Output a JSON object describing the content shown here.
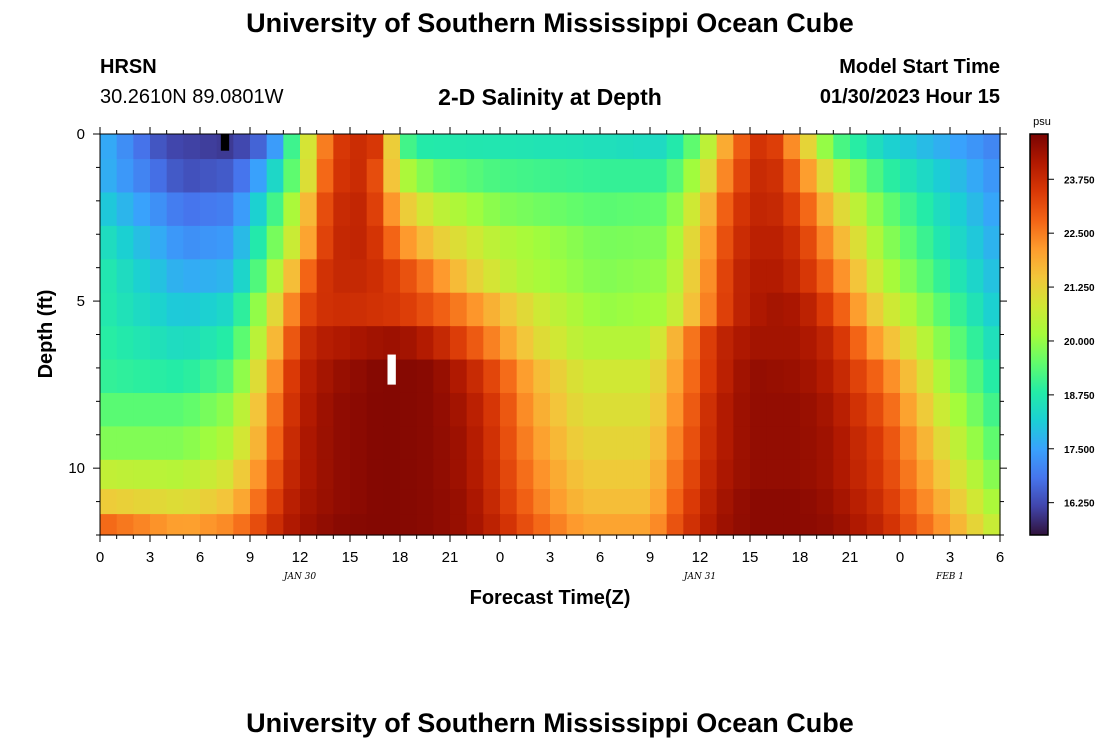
{
  "page": {
    "title_top": "University of Southern Mississippi Ocean Cube",
    "title_bottom": "University of Southern Mississippi Ocean Cube",
    "station_name": "HRSN",
    "station_coords": "30.2610N  89.0801W",
    "plot_subtitle": "2-D Salinity at Depth",
    "model_label": "Model Start Time",
    "model_time": "01/30/2023 Hour 15"
  },
  "chart_data": {
    "type": "heatmap",
    "title": "2-D Salinity at Depth",
    "xlabel": "Forecast Time(Z)",
    "ylabel": "Depth (ft)",
    "x_range_hours": [
      0,
      54
    ],
    "y_range_ft": [
      0,
      12
    ],
    "x_tick_labels": [
      "0",
      "3",
      "6",
      "9",
      "12",
      "15",
      "18",
      "21",
      "0",
      "3",
      "6",
      "9",
      "12",
      "15",
      "18",
      "21",
      "0",
      "3",
      "6"
    ],
    "y_tick_labels": [
      "0",
      "5",
      "10"
    ],
    "day_labels": [
      {
        "text": "JAN 30",
        "hour": 12
      },
      {
        "text": "JAN 31",
        "hour": 36
      },
      {
        "text": "FEB 1",
        "hour": 51
      }
    ],
    "colorbar": {
      "unit": "psu",
      "tick_labels": [
        "23.750",
        "22.500",
        "21.250",
        "20.000",
        "18.750",
        "17.500",
        "16.250"
      ],
      "range": [
        15.5,
        24.8
      ],
      "colors": [
        "#30123b",
        "#4145ab",
        "#4675ed",
        "#39a2fc",
        "#1bcfd4",
        "#24eca6",
        "#61fc6c",
        "#a4fc3b",
        "#d1e834",
        "#f3c63a",
        "#fe9b2d",
        "#f36315",
        "#d93806",
        "#b11901",
        "#7a0402"
      ]
    },
    "depth_rows_ft": [
      0.25,
      1.25,
      2.25,
      3.25,
      4.25,
      5.25,
      6.25,
      7.25,
      8.25,
      9.25,
      10.25,
      11.0,
      11.75
    ],
    "time_hours_step": 1,
    "salinity_profiles": [
      {
        "depth_ft": 0.25,
        "keyframes": [
          [
            0,
            17.8
          ],
          [
            4,
            16.2
          ],
          [
            8,
            16.0
          ],
          [
            10,
            16.8
          ],
          [
            11,
            18.0
          ],
          [
            12,
            20.2
          ],
          [
            13,
            21.6
          ],
          [
            14,
            23.4
          ],
          [
            16,
            23.8
          ],
          [
            17,
            23.2
          ],
          [
            18,
            19.5
          ],
          [
            19,
            18.8
          ],
          [
            22,
            18.7
          ],
          [
            28,
            18.6
          ],
          [
            34,
            18.4
          ],
          [
            36,
            19.8
          ],
          [
            38,
            22.6
          ],
          [
            40,
            23.9
          ],
          [
            42,
            21.8
          ],
          [
            44,
            19.4
          ],
          [
            47,
            18.3
          ],
          [
            51,
            17.6
          ],
          [
            54,
            17.0
          ]
        ]
      },
      {
        "depth_ft": 1.25,
        "keyframes": [
          [
            0,
            17.8
          ],
          [
            5,
            16.3
          ],
          [
            8,
            16.5
          ],
          [
            10,
            17.8
          ],
          [
            12,
            20.0
          ],
          [
            13,
            22.0
          ],
          [
            14,
            23.5
          ],
          [
            16,
            23.8
          ],
          [
            17,
            22.5
          ],
          [
            18,
            20.5
          ],
          [
            20,
            19.6
          ],
          [
            24,
            19.2
          ],
          [
            30,
            19.0
          ],
          [
            34,
            19.0
          ],
          [
            36,
            20.5
          ],
          [
            38,
            23.0
          ],
          [
            40,
            24.0
          ],
          [
            42,
            22.6
          ],
          [
            44,
            20.6
          ],
          [
            47,
            19.0
          ],
          [
            51,
            18.0
          ],
          [
            54,
            17.2
          ]
        ]
      },
      {
        "depth_ft": 2.25,
        "keyframes": [
          [
            0,
            18.2
          ],
          [
            5,
            16.8
          ],
          [
            8,
            17.0
          ],
          [
            10,
            18.6
          ],
          [
            12,
            20.8
          ],
          [
            13,
            22.6
          ],
          [
            14,
            23.7
          ],
          [
            16,
            23.9
          ],
          [
            17,
            22.8
          ],
          [
            18,
            21.6
          ],
          [
            20,
            20.6
          ],
          [
            24,
            19.8
          ],
          [
            30,
            19.4
          ],
          [
            34,
            19.5
          ],
          [
            36,
            21.2
          ],
          [
            38,
            23.4
          ],
          [
            40,
            24.0
          ],
          [
            42,
            23.2
          ],
          [
            44,
            21.4
          ],
          [
            47,
            19.6
          ],
          [
            51,
            18.3
          ],
          [
            54,
            17.4
          ]
        ]
      },
      {
        "depth_ft": 3.25,
        "keyframes": [
          [
            0,
            18.6
          ],
          [
            5,
            17.2
          ],
          [
            8,
            17.4
          ],
          [
            10,
            19.2
          ],
          [
            12,
            21.2
          ],
          [
            13,
            22.8
          ],
          [
            14,
            23.8
          ],
          [
            16,
            23.9
          ],
          [
            17,
            23.2
          ],
          [
            18,
            22.4
          ],
          [
            20,
            21.4
          ],
          [
            24,
            20.4
          ],
          [
            30,
            19.7
          ],
          [
            34,
            19.8
          ],
          [
            36,
            21.6
          ],
          [
            38,
            23.6
          ],
          [
            40,
            24.1
          ],
          [
            42,
            23.6
          ],
          [
            44,
            22.0
          ],
          [
            47,
            20.0
          ],
          [
            51,
            18.5
          ],
          [
            54,
            17.6
          ]
        ]
      },
      {
        "depth_ft": 4.25,
        "keyframes": [
          [
            0,
            18.8
          ],
          [
            5,
            17.6
          ],
          [
            8,
            17.8
          ],
          [
            10,
            19.8
          ],
          [
            11,
            21.0
          ],
          [
            12,
            22.2
          ],
          [
            13,
            23.4
          ],
          [
            14,
            23.8
          ],
          [
            16,
            23.8
          ],
          [
            18,
            23.3
          ],
          [
            20,
            22.4
          ],
          [
            22,
            21.4
          ],
          [
            25,
            20.4
          ],
          [
            30,
            19.8
          ],
          [
            34,
            20.0
          ],
          [
            36,
            21.8
          ],
          [
            38,
            23.8
          ],
          [
            40,
            24.2
          ],
          [
            42,
            23.8
          ],
          [
            44,
            22.6
          ],
          [
            47,
            20.4
          ],
          [
            51,
            18.8
          ],
          [
            54,
            17.8
          ]
        ]
      },
      {
        "depth_ft": 5.25,
        "keyframes": [
          [
            0,
            18.8
          ],
          [
            5,
            18.0
          ],
          [
            8,
            18.4
          ],
          [
            10,
            20.5
          ],
          [
            11,
            21.8
          ],
          [
            12,
            23.0
          ],
          [
            13,
            23.6
          ],
          [
            15,
            23.7
          ],
          [
            18,
            23.5
          ],
          [
            20,
            23.0
          ],
          [
            22,
            22.4
          ],
          [
            24,
            21.6
          ],
          [
            27,
            20.6
          ],
          [
            30,
            20.0
          ],
          [
            34,
            20.2
          ],
          [
            36,
            22.0
          ],
          [
            38,
            23.8
          ],
          [
            40,
            24.3
          ],
          [
            42,
            24.2
          ],
          [
            44,
            23.2
          ],
          [
            47,
            21.0
          ],
          [
            51,
            19.2
          ],
          [
            54,
            18.0
          ]
        ]
      },
      {
        "depth_ft": 6.25,
        "keyframes": [
          [
            0,
            18.9
          ],
          [
            5,
            18.4
          ],
          [
            8,
            18.9
          ],
          [
            10,
            21.0
          ],
          [
            11,
            22.4
          ],
          [
            12,
            23.6
          ],
          [
            13,
            24.0
          ],
          [
            16,
            24.3
          ],
          [
            18,
            24.4
          ],
          [
            20,
            24.0
          ],
          [
            22,
            23.2
          ],
          [
            24,
            22.2
          ],
          [
            26,
            21.2
          ],
          [
            29,
            20.4
          ],
          [
            33,
            20.4
          ],
          [
            35,
            22.2
          ],
          [
            37,
            23.8
          ],
          [
            39,
            24.3
          ],
          [
            42,
            24.3
          ],
          [
            44,
            23.8
          ],
          [
            47,
            21.8
          ],
          [
            51,
            19.6
          ],
          [
            54,
            18.3
          ]
        ]
      },
      {
        "depth_ft": 7.25,
        "keyframes": [
          [
            0,
            19.0
          ],
          [
            5,
            18.8
          ],
          [
            8,
            19.4
          ],
          [
            10,
            21.6
          ],
          [
            11,
            23.0
          ],
          [
            12,
            23.9
          ],
          [
            14,
            24.4
          ],
          [
            17,
            24.7
          ],
          [
            20,
            24.6
          ],
          [
            22,
            24.0
          ],
          [
            24,
            23.0
          ],
          [
            26,
            21.8
          ],
          [
            29,
            20.8
          ],
          [
            33,
            20.8
          ],
          [
            35,
            22.4
          ],
          [
            37,
            23.8
          ],
          [
            39,
            24.5
          ],
          [
            42,
            24.4
          ],
          [
            44,
            24.0
          ],
          [
            47,
            22.6
          ],
          [
            51,
            20.0
          ],
          [
            54,
            18.6
          ]
        ]
      },
      {
        "depth_ft": 8.25,
        "keyframes": [
          [
            0,
            19.4
          ],
          [
            5,
            19.4
          ],
          [
            8,
            20.0
          ],
          [
            10,
            22.0
          ],
          [
            11,
            23.2
          ],
          [
            12,
            24.0
          ],
          [
            14,
            24.5
          ],
          [
            17,
            24.7
          ],
          [
            20,
            24.6
          ],
          [
            22,
            24.2
          ],
          [
            24,
            23.3
          ],
          [
            26,
            22.0
          ],
          [
            29,
            21.0
          ],
          [
            33,
            21.0
          ],
          [
            35,
            22.6
          ],
          [
            37,
            24.0
          ],
          [
            39,
            24.5
          ],
          [
            42,
            24.5
          ],
          [
            44,
            24.2
          ],
          [
            47,
            23.0
          ],
          [
            51,
            20.4
          ],
          [
            54,
            18.9
          ]
        ]
      },
      {
        "depth_ft": 9.25,
        "keyframes": [
          [
            0,
            19.8
          ],
          [
            5,
            19.8
          ],
          [
            8,
            20.4
          ],
          [
            10,
            22.2
          ],
          [
            11,
            23.4
          ],
          [
            12,
            24.1
          ],
          [
            14,
            24.5
          ],
          [
            17,
            24.7
          ],
          [
            20,
            24.6
          ],
          [
            22,
            24.3
          ],
          [
            24,
            23.4
          ],
          [
            26,
            22.2
          ],
          [
            29,
            21.2
          ],
          [
            33,
            21.2
          ],
          [
            35,
            22.8
          ],
          [
            37,
            24.0
          ],
          [
            39,
            24.5
          ],
          [
            42,
            24.5
          ],
          [
            44,
            24.3
          ],
          [
            47,
            23.3
          ],
          [
            51,
            20.8
          ],
          [
            54,
            19.2
          ]
        ]
      },
      {
        "depth_ft": 10.25,
        "keyframes": [
          [
            0,
            20.6
          ],
          [
            5,
            20.4
          ],
          [
            8,
            21.0
          ],
          [
            10,
            22.6
          ],
          [
            11,
            23.6
          ],
          [
            12,
            24.1
          ],
          [
            14,
            24.5
          ],
          [
            17,
            24.7
          ],
          [
            20,
            24.6
          ],
          [
            22,
            24.3
          ],
          [
            24,
            23.5
          ],
          [
            26,
            22.4
          ],
          [
            29,
            21.4
          ],
          [
            33,
            21.4
          ],
          [
            35,
            23.0
          ],
          [
            37,
            24.1
          ],
          [
            39,
            24.5
          ],
          [
            42,
            24.5
          ],
          [
            44,
            24.3
          ],
          [
            47,
            23.4
          ],
          [
            51,
            21.2
          ],
          [
            54,
            19.6
          ]
        ]
      },
      {
        "depth_ft": 11.0,
        "keyframes": [
          [
            0,
            21.4
          ],
          [
            5,
            21.0
          ],
          [
            8,
            21.6
          ],
          [
            10,
            23.0
          ],
          [
            11,
            23.8
          ],
          [
            12,
            24.2
          ],
          [
            14,
            24.5
          ],
          [
            17,
            24.7
          ],
          [
            20,
            24.6
          ],
          [
            22,
            24.4
          ],
          [
            24,
            23.6
          ],
          [
            26,
            22.6
          ],
          [
            29,
            21.6
          ],
          [
            33,
            21.6
          ],
          [
            35,
            23.2
          ],
          [
            37,
            24.2
          ],
          [
            39,
            24.6
          ],
          [
            42,
            24.6
          ],
          [
            44,
            24.4
          ],
          [
            47,
            23.6
          ],
          [
            51,
            21.6
          ],
          [
            54,
            20.0
          ]
        ]
      },
      {
        "depth_ft": 11.75,
        "keyframes": [
          [
            0,
            22.8
          ],
          [
            5,
            22.0
          ],
          [
            8,
            22.4
          ],
          [
            10,
            23.4
          ],
          [
            11,
            24.0
          ],
          [
            12,
            24.3
          ],
          [
            14,
            24.6
          ],
          [
            17,
            24.7
          ],
          [
            20,
            24.6
          ],
          [
            22,
            24.4
          ],
          [
            24,
            23.8
          ],
          [
            26,
            22.9
          ],
          [
            29,
            22.0
          ],
          [
            33,
            22.0
          ],
          [
            35,
            23.4
          ],
          [
            37,
            24.3
          ],
          [
            39,
            24.6
          ],
          [
            42,
            24.6
          ],
          [
            44,
            24.5
          ],
          [
            47,
            23.8
          ],
          [
            51,
            22.0
          ],
          [
            54,
            20.4
          ]
        ]
      }
    ],
    "missing_cells": [
      {
        "hour": 7.5,
        "depth_ft": [
          0.0,
          0.5
        ],
        "color": "#000000"
      },
      {
        "hour": 17.5,
        "depth_ft": [
          6.6,
          7.5
        ],
        "color": "#ffffff"
      }
    ]
  }
}
